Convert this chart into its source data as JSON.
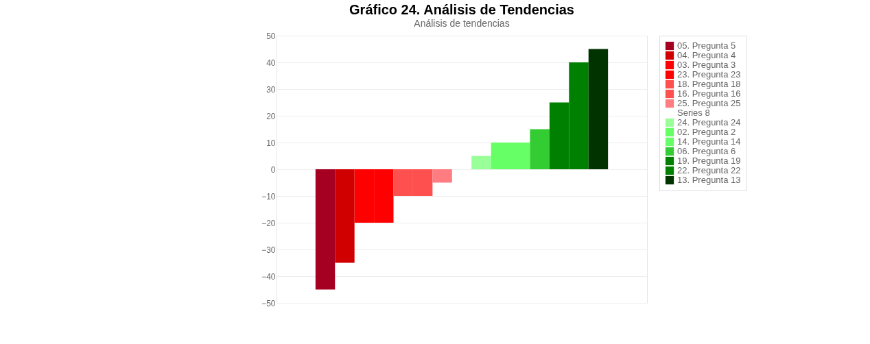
{
  "chart_data": {
    "type": "bar",
    "title": "Gráfico 24. Análisis de Tendencias",
    "subtitle": "Análisis de tendencias",
    "categories": [
      null
    ],
    "series": [
      {
        "name": "05. Pregunta 5",
        "color": "#a50021",
        "values": [
          -45
        ]
      },
      {
        "name": "04. Pregunta 4",
        "color": "#d00000",
        "values": [
          -35
        ]
      },
      {
        "name": "03. Pregunta 3",
        "color": "#ff0000",
        "values": [
          -20
        ]
      },
      {
        "name": "23. Pregunta 23",
        "color": "#ff0000",
        "values": [
          -20
        ]
      },
      {
        "name": "18. Pregunta 18",
        "color": "#ff5050",
        "values": [
          -10
        ]
      },
      {
        "name": "16. Pregunta 16",
        "color": "#ff5050",
        "values": [
          -10
        ]
      },
      {
        "name": "25. Pregunta 25",
        "color": "#ff7c80",
        "values": [
          -5
        ]
      },
      {
        "name": "Series 8",
        "values": [
          null
        ]
      },
      {
        "name": "24. Pregunta 24",
        "color": "#99ff99",
        "values": [
          5
        ]
      },
      {
        "name": "02. Pregunta 2",
        "color": "#66ff66",
        "values": [
          10
        ]
      },
      {
        "name": "14. Pregunta 14",
        "color": "#66ff66",
        "values": [
          10
        ]
      },
      {
        "name": "06. Pregunta 6",
        "color": "#33cc33",
        "values": [
          15
        ]
      },
      {
        "name": "19. Pregunta 19",
        "color": "#008000",
        "values": [
          25
        ]
      },
      {
        "name": "22. Pregunta 22",
        "color": "#008000",
        "values": [
          40
        ]
      },
      {
        "name": "13. Pregunta 13",
        "color": "#003300",
        "values": [
          45
        ]
      }
    ],
    "ylim": [
      -50,
      50
    ],
    "yticks": [
      -50,
      -40,
      -30,
      -20,
      -10,
      0,
      10,
      20,
      30,
      40,
      50
    ],
    "grid": "y",
    "legend": "right"
  }
}
